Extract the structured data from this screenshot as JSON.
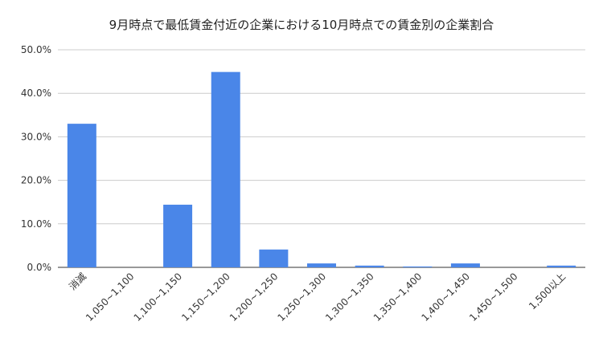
{
  "chart_data": {
    "type": "bar",
    "title": "9月時点で最低賃金付近の企業における10月時点での賃金別の企業割合",
    "xlabel": "",
    "ylabel": "",
    "categories": [
      "消滅",
      "1,050~1,100",
      "1,100~1,150",
      "1,150~1,200",
      "1,200~1,250",
      "1,250~1,300",
      "1,300~1,350",
      "1,350~1,400",
      "1,400~1,450",
      "1,450~1,500",
      "1,500以上"
    ],
    "values": [
      33.0,
      0.0,
      14.4,
      44.9,
      4.1,
      0.9,
      0.4,
      0.2,
      0.9,
      0.0,
      0.4
    ],
    "ylim": [
      0,
      50
    ],
    "yticks": [
      "0.0%",
      "10.0%",
      "20.0%",
      "30.0%",
      "40.0%",
      "50.0%"
    ],
    "grid": true,
    "legend": "none",
    "bar_color": "#4a86e8"
  }
}
